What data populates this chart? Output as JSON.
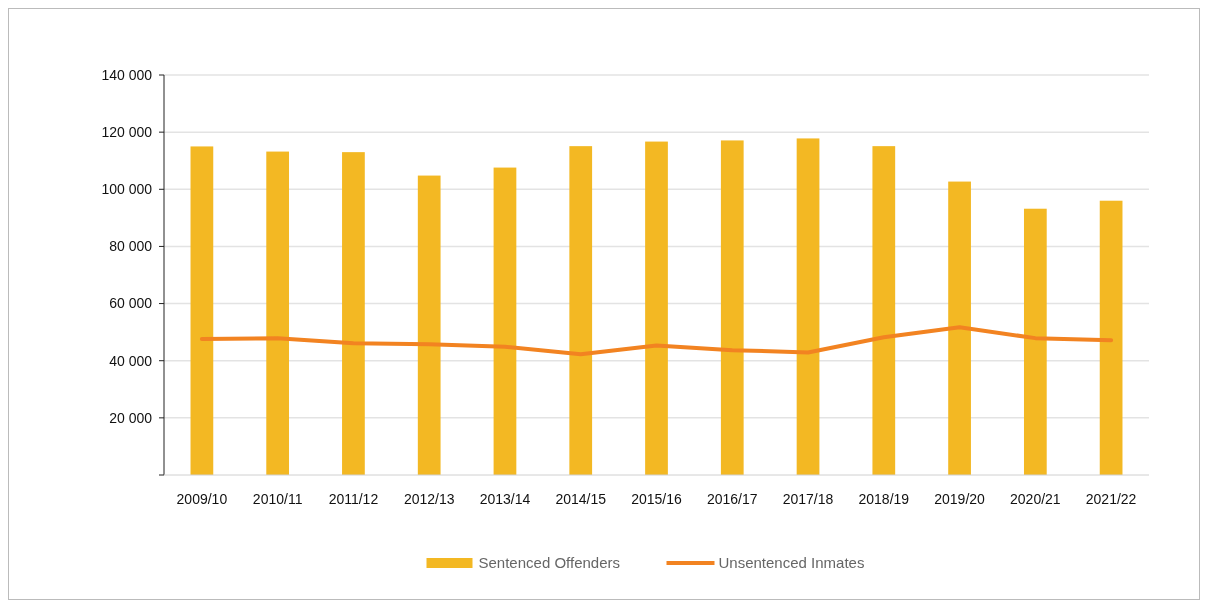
{
  "chart_data": {
    "type": "bar",
    "categories": [
      "2009/10",
      "2010/11",
      "2011/12",
      "2012/13",
      "2013/14",
      "2014/15",
      "2015/16",
      "2016/17",
      "2017/18",
      "2018/19",
      "2019/20",
      "2020/21",
      "2021/22"
    ],
    "series": [
      {
        "name": "Sentenced Offenders",
        "color": "#f3b823",
        "values": [
          115000,
          113200,
          113000,
          104800,
          107600,
          115100,
          116700,
          117100,
          117800,
          115100,
          102700,
          93200,
          96000
        ]
      },
      {
        "name": "Unsentenced Inmates",
        "type": "line",
        "color": "#f28321",
        "values": [
          47600,
          47900,
          46100,
          45800,
          44900,
          42300,
          45300,
          43700,
          42900,
          48200,
          51700,
          47900,
          47200
        ]
      }
    ],
    "ylim": [
      0,
      140000
    ],
    "yticks": [
      {
        "value": 0,
        "label": null
      },
      {
        "value": 20000,
        "label": "20 000"
      },
      {
        "value": 40000,
        "label": "40 000"
      },
      {
        "value": 60000,
        "label": "60 000"
      },
      {
        "value": 80000,
        "label": "80 000"
      },
      {
        "value": 100000,
        "label": "100 000"
      },
      {
        "value": 120000,
        "label": "120 000"
      },
      {
        "value": 140000,
        "label": "140 000"
      }
    ],
    "grid": "y",
    "legend": "bottom",
    "line_style": "solid",
    "marker": "none"
  }
}
